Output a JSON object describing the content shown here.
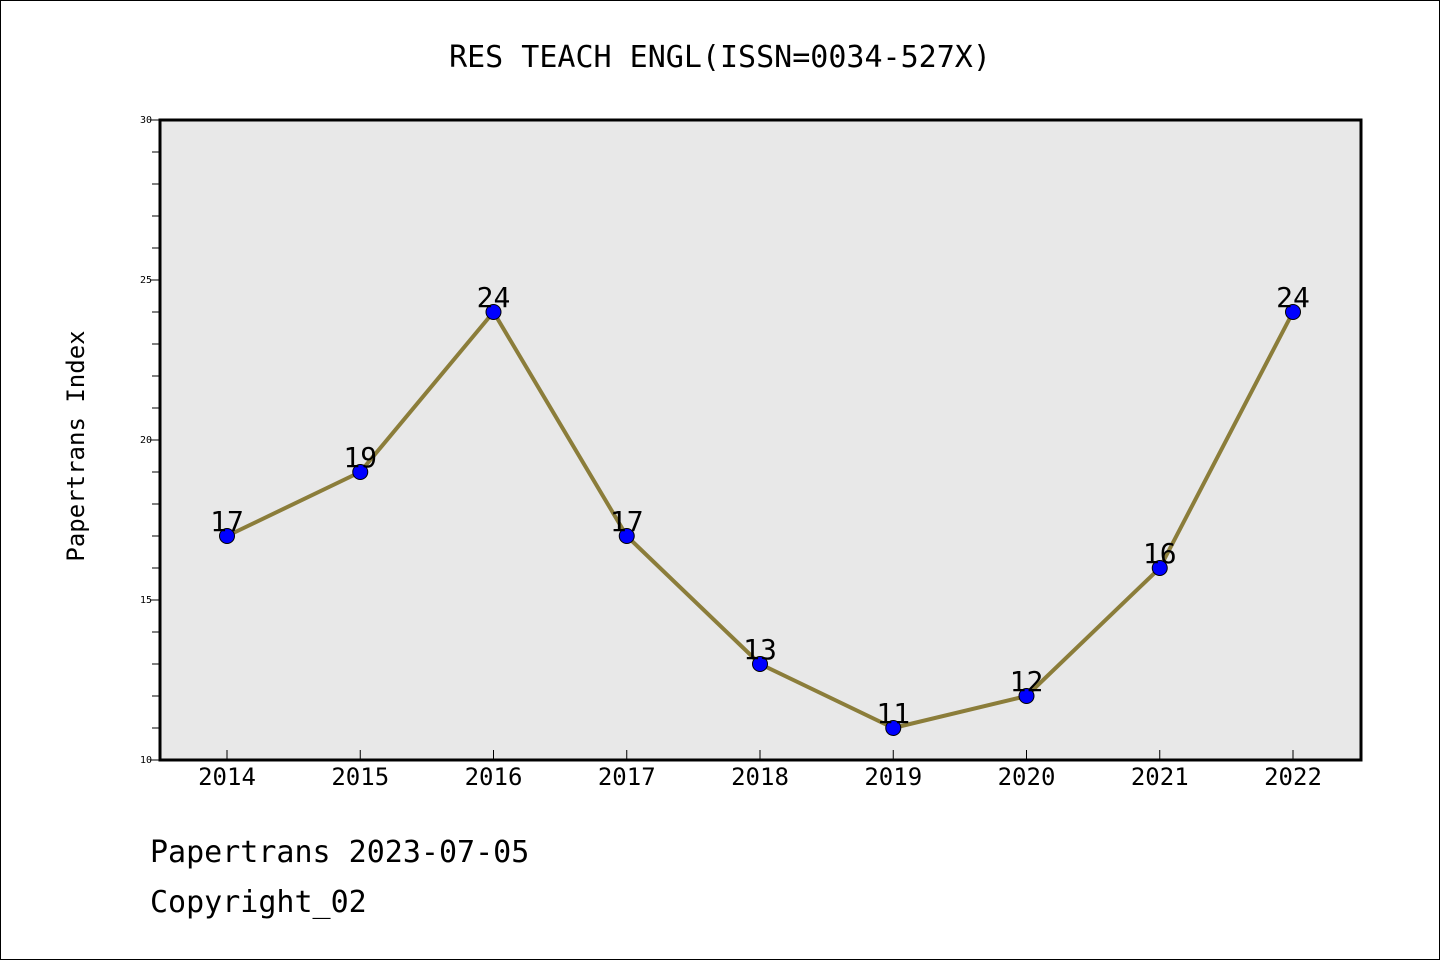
{
  "chart_data": {
    "type": "line",
    "title": "RES TEACH ENGL(ISSN=0034-527X)",
    "xlabel": "",
    "ylabel": "Papertrans Index",
    "categories": [
      "2014",
      "2015",
      "2016",
      "2017",
      "2018",
      "2019",
      "2020",
      "2021",
      "2022"
    ],
    "values": [
      17,
      19,
      24,
      17,
      13,
      11,
      12,
      16,
      24
    ],
    "data_labels": [
      "17",
      "19",
      "24",
      "17",
      "13",
      "11",
      "12",
      "16",
      "24"
    ],
    "ylim": [
      10,
      30
    ],
    "y_ticks": [
      10,
      15,
      20,
      25,
      30
    ],
    "y_tick_labels": [
      "10",
      "15",
      "20",
      "25",
      "30"
    ],
    "grid": false,
    "colors": {
      "line": "#8b7d3a",
      "marker": "#0000ff",
      "plot_background": "#e8e8e8"
    }
  },
  "footer": {
    "source": "Papertrans 2023-07-05",
    "copyright": "Copyright_02"
  }
}
